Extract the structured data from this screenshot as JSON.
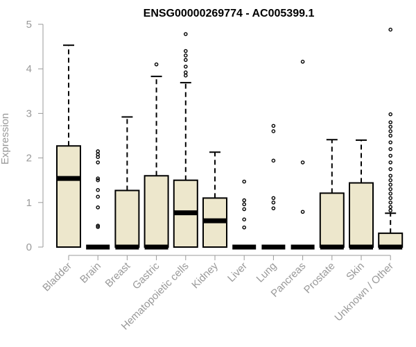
{
  "chart_data": {
    "type": "boxplot",
    "title": "ENSG00000269774 - AC005399.1",
    "xlabel": "",
    "ylabel": "Expression",
    "ylim": [
      0,
      5
    ],
    "yticks": [
      0,
      1,
      2,
      3,
      4,
      5
    ],
    "grid": false,
    "colors": {
      "box_fill": "#ede7cc",
      "stroke": "#000000",
      "label": "#999999"
    },
    "categories": [
      "Bladder",
      "Brain",
      "Breast",
      "Gastric",
      "Hematopoietic cells",
      "Kidney",
      "Liver",
      "Lung",
      "Pancreas",
      "Prostate",
      "Skin",
      "Unknown / Other"
    ],
    "boxes": [
      {
        "category": "Bladder",
        "q1": 0,
        "median": 1.54,
        "q3": 2.27,
        "whisker_low": 0,
        "whisker_high": 4.53,
        "outliers": []
      },
      {
        "category": "Brain",
        "q1": 0,
        "median": 0,
        "q3": 0,
        "whisker_low": 0,
        "whisker_high": 0,
        "outliers": [
          0.45,
          0.48,
          0.89,
          1.13,
          1.28,
          1.5,
          1.54,
          1.9,
          2.02,
          2.08,
          2.15
        ]
      },
      {
        "category": "Breast",
        "q1": 0,
        "median": 0,
        "q3": 1.27,
        "whisker_low": 0,
        "whisker_high": 2.92,
        "outliers": []
      },
      {
        "category": "Gastric",
        "q1": 0,
        "median": 0,
        "q3": 1.6,
        "whisker_low": 0,
        "whisker_high": 3.83,
        "outliers": [
          4.1
        ]
      },
      {
        "category": "Hematopoietic cells",
        "q1": 0,
        "median": 0.77,
        "q3": 1.5,
        "whisker_low": 0,
        "whisker_high": 3.69,
        "outliers": [
          3.85,
          3.92,
          4.05,
          4.2,
          4.3,
          4.4,
          4.78
        ]
      },
      {
        "category": "Kidney",
        "q1": 0,
        "median": 0.59,
        "q3": 1.1,
        "whisker_low": 0,
        "whisker_high": 2.13,
        "outliers": []
      },
      {
        "category": "Liver",
        "q1": 0,
        "median": 0,
        "q3": 0,
        "whisker_low": 0,
        "whisker_high": 0,
        "outliers": [
          0.44,
          0.62,
          0.85,
          0.96,
          1.05,
          1.47
        ]
      },
      {
        "category": "Lung",
        "q1": 0,
        "median": 0,
        "q3": 0,
        "whisker_low": 0,
        "whisker_high": 0,
        "outliers": [
          0.87,
          1.0,
          1.1,
          1.94,
          2.6,
          2.72
        ]
      },
      {
        "category": "Pancreas",
        "q1": 0,
        "median": 0,
        "q3": 0,
        "whisker_low": 0,
        "whisker_high": 0,
        "outliers": [
          0.79,
          1.9,
          4.16
        ]
      },
      {
        "category": "Prostate",
        "q1": 0,
        "median": 0,
        "q3": 1.21,
        "whisker_low": 0,
        "whisker_high": 2.41,
        "outliers": []
      },
      {
        "category": "Skin",
        "q1": 0,
        "median": 0,
        "q3": 1.44,
        "whisker_low": 0,
        "whisker_high": 2.4,
        "outliers": []
      },
      {
        "category": "Unknown / Other",
        "q1": 0,
        "median": 0,
        "q3": 0.31,
        "whisker_low": 0,
        "whisker_high": 0.76,
        "outliers": [
          0.82,
          0.9,
          1.0,
          1.1,
          1.2,
          1.3,
          1.4,
          1.5,
          1.6,
          1.75,
          1.9,
          2.05,
          2.2,
          2.35,
          2.5,
          2.6,
          2.7,
          2.8,
          2.98,
          4.88
        ]
      }
    ]
  }
}
